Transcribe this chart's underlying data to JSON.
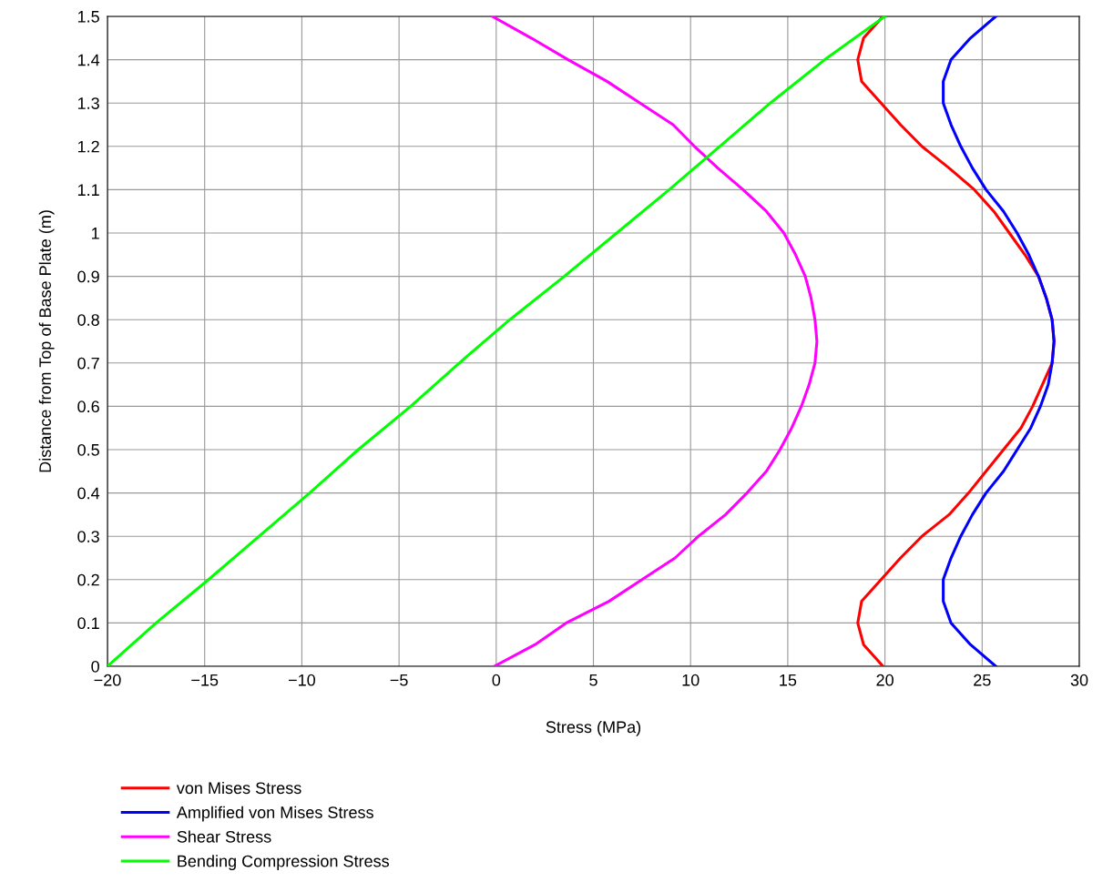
{
  "chart_data": {
    "type": "line",
    "xlabel": "Stress (MPa)",
    "ylabel": "Distance from Top of Base Plate (m)",
    "xlim": [
      -20,
      30
    ],
    "ylim": [
      0,
      1.5
    ],
    "xticks": [
      {
        "value": -20,
        "label": "−20"
      },
      {
        "value": -15,
        "label": "−15"
      },
      {
        "value": -10,
        "label": "−10"
      },
      {
        "value": -5,
        "label": "−5"
      },
      0,
      5,
      10,
      15,
      20,
      25,
      30
    ],
    "yticks": [
      0,
      0.1,
      0.2,
      0.3,
      0.4,
      0.5,
      0.6,
      0.7,
      0.8,
      0.9,
      1,
      1.1,
      1.2,
      1.3,
      1.4,
      1.5
    ],
    "grid": true,
    "legend": "bottom",
    "marker": "none",
    "line_style": "solid",
    "series": [
      {
        "name": "von Mises Stress",
        "color": "#ff0000",
        "x": [
          19.9,
          18.9,
          18.6,
          18.8,
          19.8,
          20.8,
          21.9,
          23.3,
          24.3,
          25.2,
          26.1,
          27.0,
          27.6,
          28.1,
          28.6,
          28.7,
          28.6,
          28.3,
          27.9,
          27.2,
          26.4,
          25.6,
          24.6,
          23.3,
          21.9,
          20.8,
          19.8,
          18.8,
          18.6,
          18.9,
          19.9
        ],
        "values": [
          0,
          0.05,
          0.1,
          0.15,
          0.2,
          0.25,
          0.3,
          0.35,
          0.4,
          0.45,
          0.5,
          0.55,
          0.6,
          0.65,
          0.7,
          0.75,
          0.8,
          0.85,
          0.9,
          0.95,
          1.0,
          1.05,
          1.1,
          1.15,
          1.2,
          1.25,
          1.3,
          1.35,
          1.4,
          1.45,
          1.5
        ]
      },
      {
        "name": "Amplified von Mises Stress",
        "color": "#0000ff",
        "x": [
          25.7,
          24.4,
          23.4,
          23.0,
          23.0,
          23.4,
          23.9,
          24.5,
          25.2,
          26.1,
          26.8,
          27.5,
          28.0,
          28.4,
          28.6,
          28.7,
          28.6,
          28.3,
          27.9,
          27.4,
          26.8,
          26.1,
          25.2,
          24.5,
          23.9,
          23.4,
          23.0,
          23.0,
          23.4,
          24.4,
          25.7
        ],
        "values": [
          0,
          0.05,
          0.1,
          0.15,
          0.2,
          0.25,
          0.3,
          0.35,
          0.4,
          0.45,
          0.5,
          0.55,
          0.6,
          0.65,
          0.7,
          0.75,
          0.8,
          0.85,
          0.9,
          0.95,
          1.0,
          1.05,
          1.1,
          1.15,
          1.2,
          1.25,
          1.3,
          1.35,
          1.4,
          1.45,
          1.5
        ]
      },
      {
        "name": "Shear Stress",
        "color": "#ff00ff",
        "x": [
          -0.1,
          2.0,
          3.6,
          5.8,
          7.5,
          9.2,
          10.4,
          11.8,
          12.9,
          13.9,
          14.6,
          15.2,
          15.7,
          16.1,
          16.4,
          16.5,
          16.4,
          16.2,
          15.9,
          15.4,
          14.8,
          13.9,
          12.7,
          11.4,
          10.2,
          9.1,
          7.4,
          5.7,
          3.7,
          1.8,
          -0.2
        ],
        "values": [
          0,
          0.05,
          0.1,
          0.15,
          0.2,
          0.25,
          0.3,
          0.35,
          0.4,
          0.45,
          0.5,
          0.55,
          0.6,
          0.65,
          0.7,
          0.75,
          0.8,
          0.85,
          0.9,
          0.95,
          1.0,
          1.05,
          1.1,
          1.15,
          1.2,
          1.25,
          1.3,
          1.35,
          1.4,
          1.45,
          1.5
        ]
      },
      {
        "name": "Bending Compression Stress",
        "color": "#00ff00",
        "x": [
          -20,
          -17.5,
          -14.8,
          -12.2,
          -9.6,
          -7.1,
          -4.4,
          -1.9,
          0.7,
          3.5,
          6.2,
          8.9,
          11.5,
          14.1,
          16.9,
          20
        ],
        "values": [
          0,
          0.1,
          0.2,
          0.3,
          0.4,
          0.5,
          0.6,
          0.7,
          0.8,
          0.9,
          1.0,
          1.1,
          1.2,
          1.3,
          1.4,
          1.5
        ]
      }
    ]
  }
}
